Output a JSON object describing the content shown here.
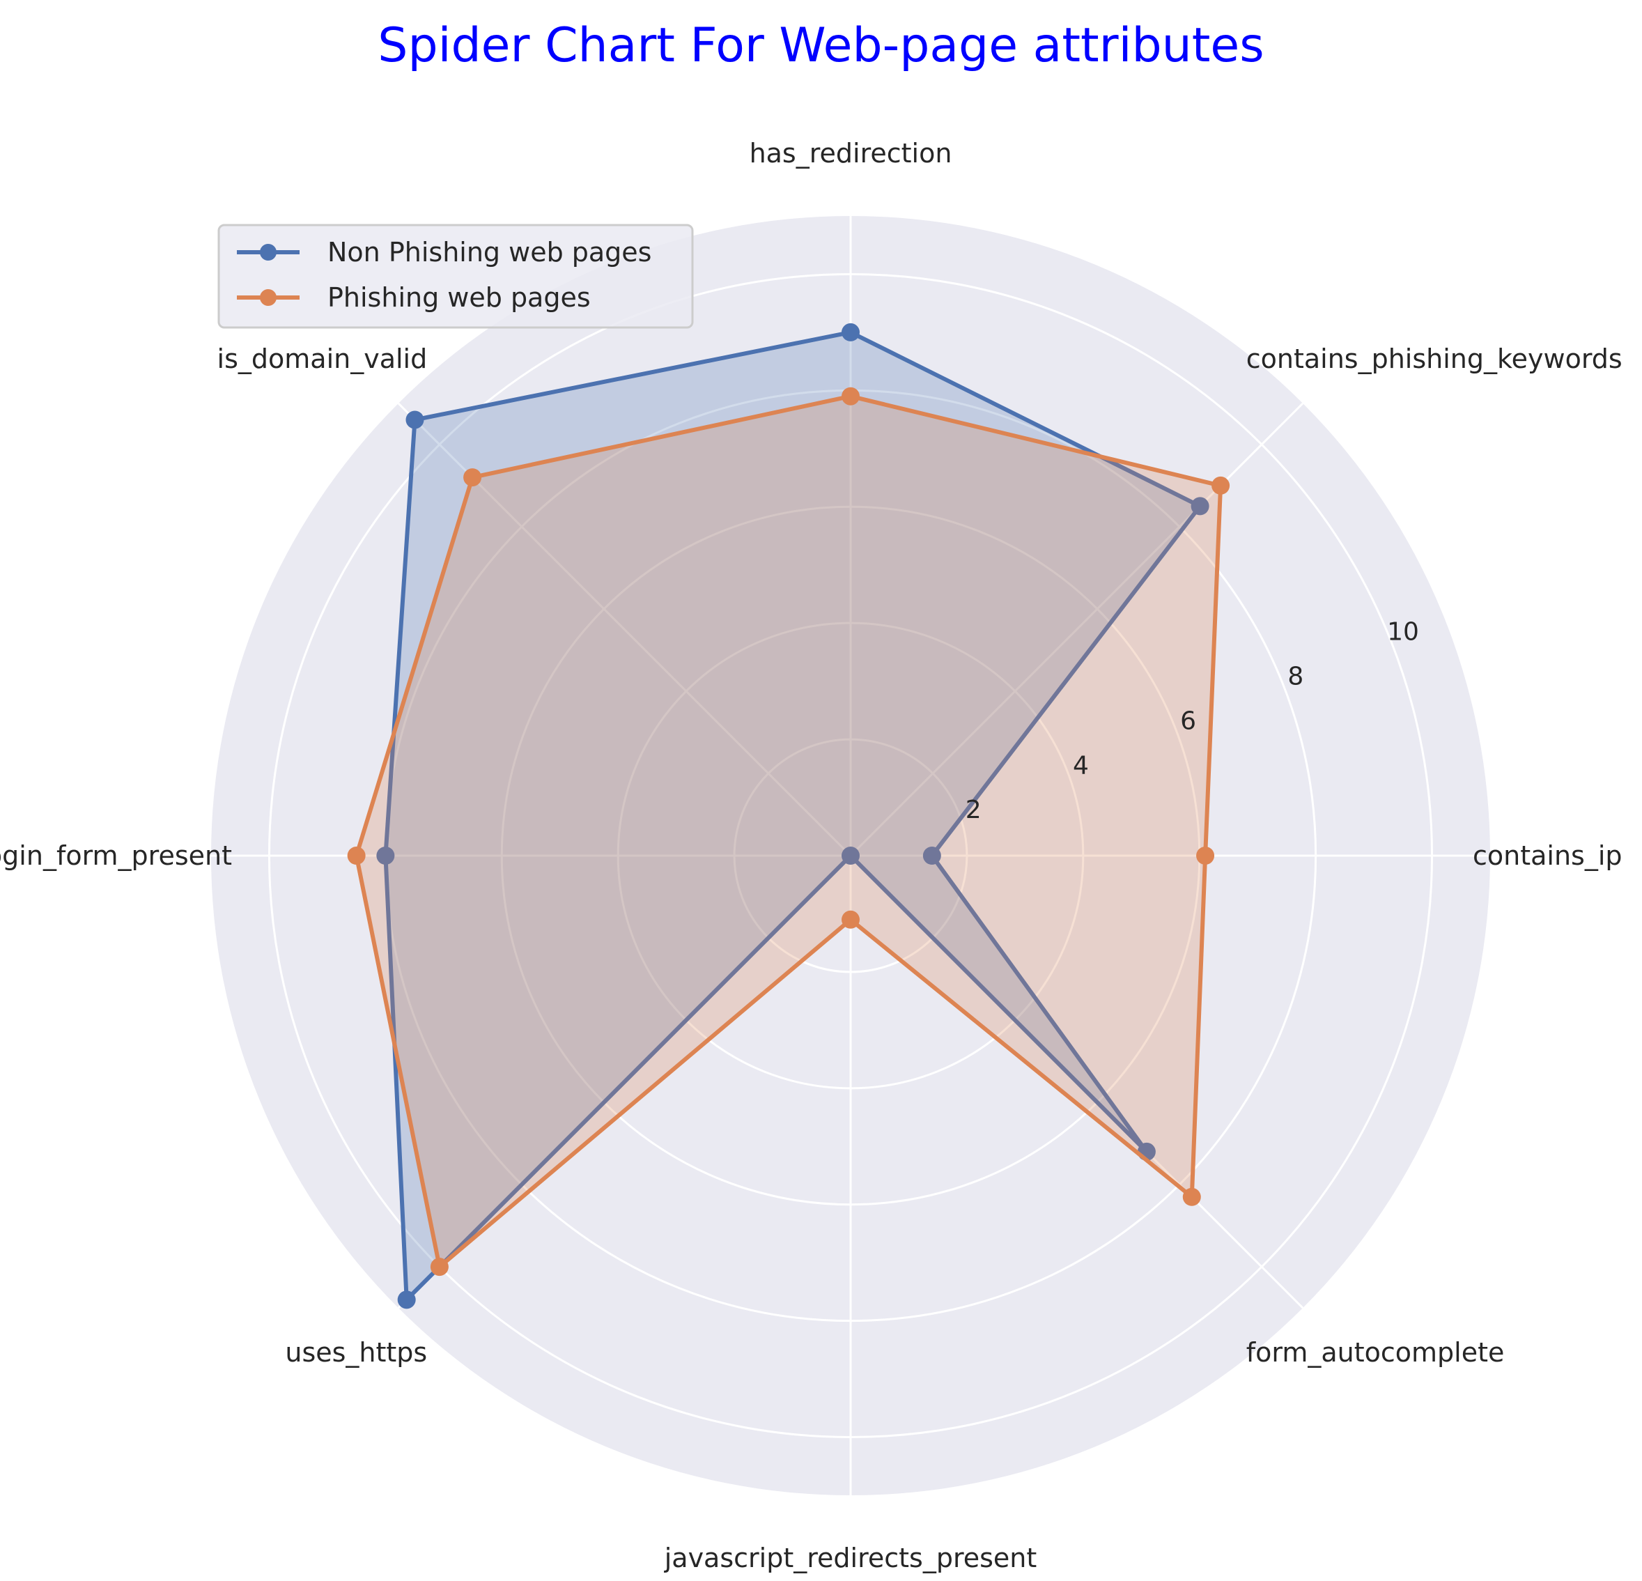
{
  "chart_data": {
    "type": "radar",
    "title": "Spider Chart For Web-page attributes",
    "categories": [
      "contains_ip",
      "contains_phishing_keywords",
      "has_redirection",
      "is_domain_valid",
      "login_form_present",
      "uses_https",
      "javascript_redirects_present",
      "form_autocomplete"
    ],
    "series": [
      {
        "name": "Non Phishing web pages",
        "color": "#4c72b0",
        "values": [
          1.4,
          8.5,
          9.0,
          10.6,
          8.0,
          10.8,
          0.0,
          7.2
        ]
      },
      {
        "name": "Phishing web pages",
        "color": "#dd8452",
        "values": [
          6.1,
          9.0,
          7.9,
          9.2,
          8.5,
          10.0,
          1.1,
          8.3
        ]
      }
    ],
    "rticks": [
      "2",
      "4",
      "6",
      "8",
      "10"
    ],
    "rmax": 11,
    "grid": true,
    "legend": "top-left"
  }
}
